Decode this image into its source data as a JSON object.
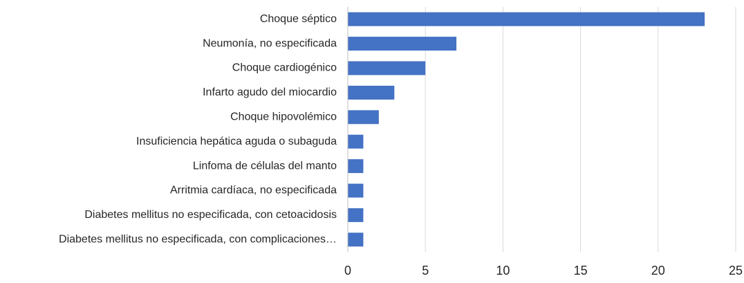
{
  "chart_data": {
    "type": "bar",
    "orientation": "horizontal",
    "categories": [
      "Choque séptico",
      "Neumonía, no especificada",
      "Choque cardiogénico",
      "Infarto agudo del miocardio",
      "Choque hipovolémico",
      "Insuficiencia hepática aguda o subaguda",
      "Linfoma de células del manto",
      "Arritmia cardíaca, no especificada",
      "Diabetes mellitus no especificada, con cetoacidosis",
      "Diabetes mellitus no especificada, con complicaciones…"
    ],
    "values": [
      23,
      7,
      5,
      3,
      2,
      1,
      1,
      1,
      1,
      1
    ],
    "color": "#4472c4",
    "xlim": [
      0,
      25
    ],
    "xticks": [
      0,
      5,
      10,
      15,
      20,
      25
    ],
    "grid": true
  }
}
